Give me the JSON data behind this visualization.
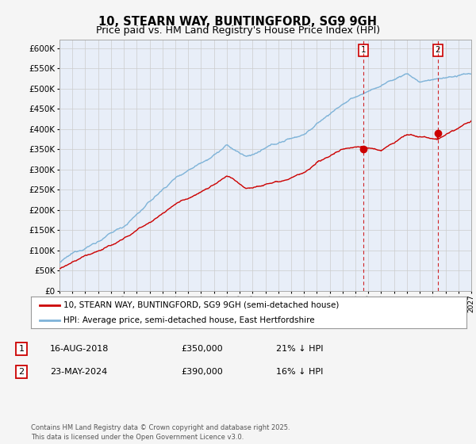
{
  "title1": "10, STEARN WAY, BUNTINGFORD, SG9 9GH",
  "title2": "Price paid vs. HM Land Registry's House Price Index (HPI)",
  "ylim": [
    0,
    620000
  ],
  "yticks": [
    0,
    50000,
    100000,
    150000,
    200000,
    250000,
    300000,
    350000,
    400000,
    450000,
    500000,
    550000,
    600000
  ],
  "hpi_color": "#7eb3d8",
  "price_color": "#cc0000",
  "vline_color": "#cc0000",
  "grid_color": "#cccccc",
  "bg_color": "#e8eef8",
  "marker1_year": 2018.62,
  "marker2_year": 2024.4,
  "marker1_price": 350000,
  "marker2_price": 390000,
  "legend1": "10, STEARN WAY, BUNTINGFORD, SG9 9GH (semi-detached house)",
  "legend2": "HPI: Average price, semi-detached house, East Hertfordshire",
  "table_row1": [
    "1",
    "16-AUG-2018",
    "£350,000",
    "21% ↓ HPI"
  ],
  "table_row2": [
    "2",
    "23-MAY-2024",
    "£390,000",
    "16% ↓ HPI"
  ],
  "footer": "Contains HM Land Registry data © Crown copyright and database right 2025.\nThis data is licensed under the Open Government Licence v3.0.",
  "title_fontsize": 10.5,
  "subtitle_fontsize": 9
}
